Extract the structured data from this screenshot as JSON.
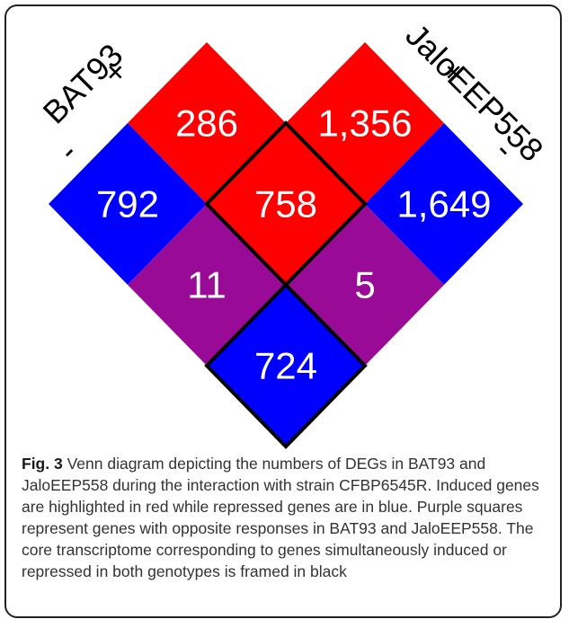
{
  "genotypes": [
    {
      "name": "BAT93",
      "plus": "+",
      "minus": "-"
    },
    {
      "name": "JaloEEP558",
      "plus": "+",
      "minus": "-"
    }
  ],
  "cells": [
    {
      "label": "286",
      "color": "#ff0000",
      "framed": false
    },
    {
      "label": "1,356",
      "color": "#ff0000",
      "framed": false
    },
    {
      "label": "792",
      "color": "#0000ff",
      "framed": false
    },
    {
      "label": "758",
      "color": "#ff0000",
      "framed": true
    },
    {
      "label": "1,649",
      "color": "#0000ff",
      "framed": false
    },
    {
      "label": "11",
      "color": "#990a96",
      "framed": false
    },
    {
      "label": "5",
      "color": "#990a96",
      "framed": false
    },
    {
      "label": "724",
      "color": "#0000ff",
      "framed": true
    }
  ],
  "caption": {
    "label": "Fig. 3",
    "text": "Venn diagram depicting the numbers of DEGs in BAT93 and JaloEEP558 during the interaction with strain CFBP6545R. Induced genes are highlighted in red while repressed genes are in blue. Purple squares represent genes with opposite responses in BAT93 and JaloEEP558. The core transcriptome corresponding to genes simultaneously induced or repressed in both genotypes is framed in black"
  }
}
